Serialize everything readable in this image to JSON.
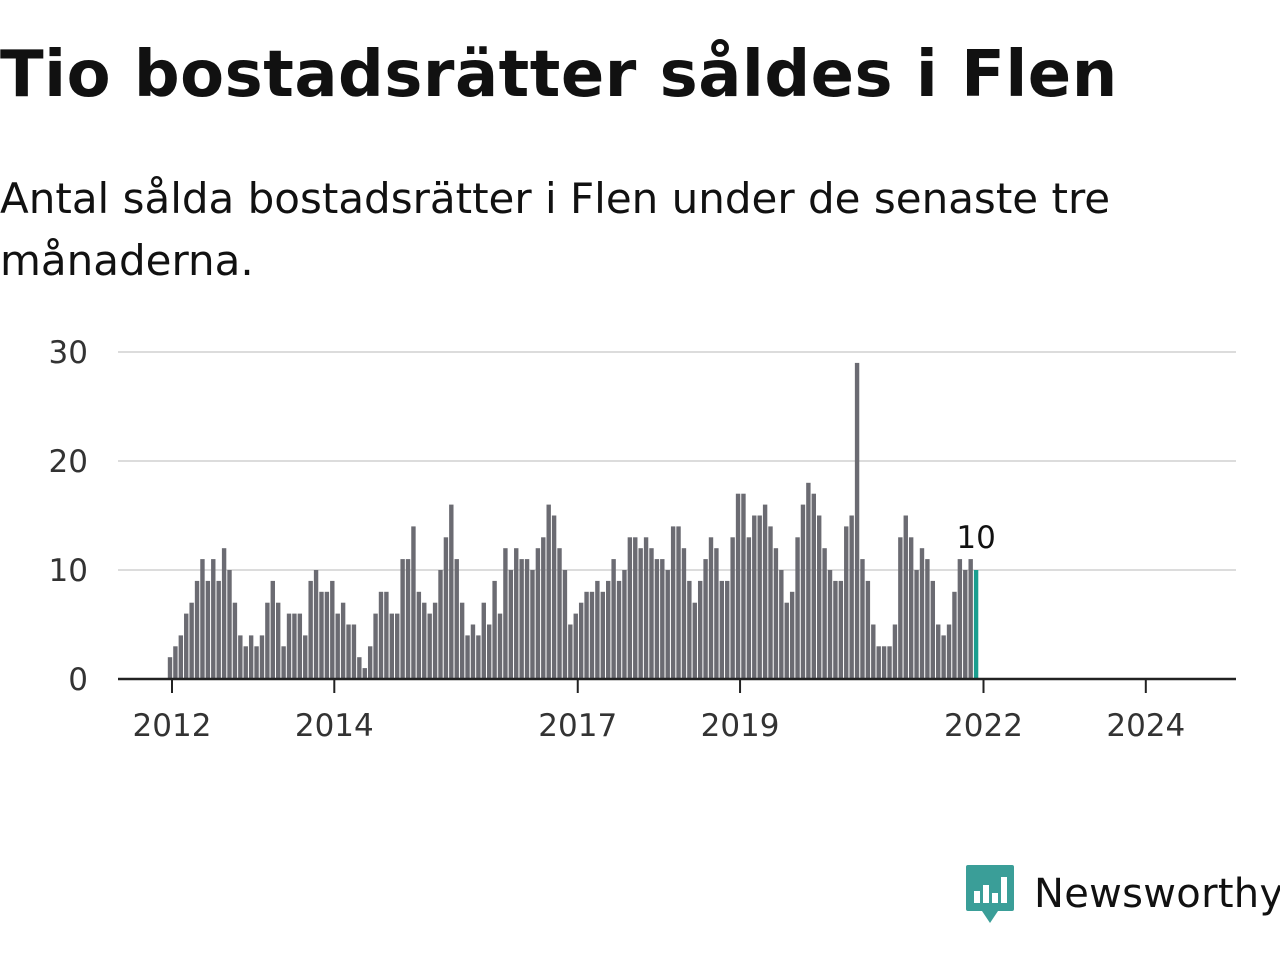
{
  "title": "Tio bostadsrätter såldes i Flen",
  "subtitle": "Antal sålda bostadsrätter i Flen under de senaste tre månaderna.",
  "brand": {
    "name": "Newsworthy",
    "color": "#3a9e98"
  },
  "chart_data": {
    "type": "bar",
    "title": "Tio bostadsrätter såldes i Flen",
    "xlabel": "",
    "ylabel": "",
    "ylim": [
      0,
      30
    ],
    "yticks": [
      0,
      10,
      20,
      30
    ],
    "xtick_labels": [
      {
        "label": "2012",
        "index": 0
      },
      {
        "label": "2014",
        "index": 30
      },
      {
        "label": "2017",
        "index": 75
      },
      {
        "label": "2019",
        "index": 105
      },
      {
        "label": "2022",
        "index": 150
      },
      {
        "label": "2024",
        "index": 180
      }
    ],
    "grid": true,
    "bar_color": "#6b6b72",
    "highlight_color": "#1a9e8f",
    "highlight_label": "10",
    "series": [
      {
        "name": "Antal sålda bostadsrätter",
        "values": [
          2,
          3,
          4,
          6,
          7,
          9,
          11,
          9,
          11,
          9,
          12,
          10,
          7,
          4,
          3,
          4,
          3,
          4,
          7,
          9,
          7,
          3,
          6,
          6,
          6,
          4,
          9,
          10,
          8,
          8,
          9,
          6,
          7,
          5,
          5,
          2,
          1,
          3,
          6,
          8,
          8,
          6,
          6,
          11,
          11,
          14,
          8,
          7,
          6,
          7,
          10,
          13,
          16,
          11,
          7,
          4,
          5,
          4,
          7,
          5,
          9,
          6,
          12,
          10,
          12,
          11,
          11,
          10,
          12,
          13,
          16,
          15,
          12,
          10,
          5,
          6,
          7,
          8,
          8,
          9,
          8,
          9,
          11,
          9,
          10,
          13,
          13,
          12,
          13,
          12,
          11,
          11,
          10,
          14,
          14,
          12,
          9,
          7,
          9,
          11,
          13,
          12,
          9,
          9,
          13,
          17,
          17,
          13,
          15,
          15,
          16,
          14,
          12,
          10,
          7,
          8,
          13,
          16,
          18,
          17,
          15,
          12,
          10,
          9,
          9,
          14,
          15,
          29,
          11,
          9,
          5,
          3,
          3,
          3,
          5,
          13,
          15,
          13,
          10,
          12,
          11,
          9,
          5,
          4,
          5,
          8,
          11,
          10,
          11,
          10
        ]
      }
    ]
  }
}
